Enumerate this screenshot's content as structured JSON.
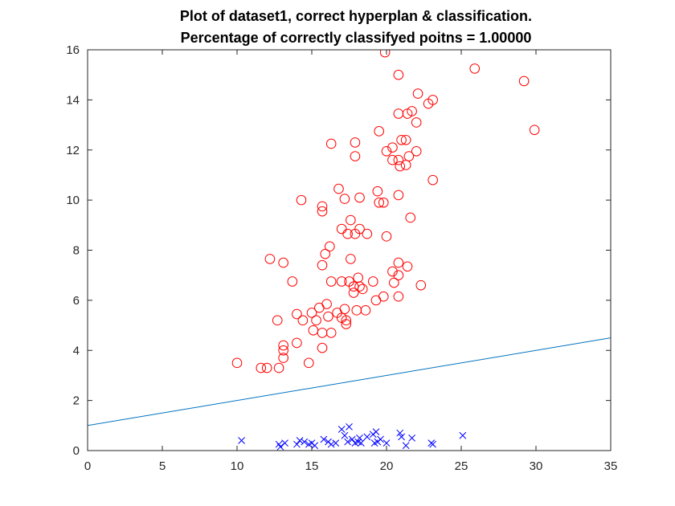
{
  "chart_data": {
    "type": "scatter",
    "title": [
      "Plot of dataset1, correct hyperplan & classification.",
      "Percentage of correctly classifyed poitns = 1.00000"
    ],
    "xlabel": "",
    "ylabel": "",
    "xlim": [
      0,
      35
    ],
    "ylim": [
      0,
      16
    ],
    "xticks": [
      0,
      5,
      10,
      15,
      20,
      25,
      30,
      35
    ],
    "yticks": [
      0,
      2,
      4,
      6,
      8,
      10,
      12,
      14,
      16
    ],
    "grid": false,
    "legend": null,
    "colors": {
      "circles": "#ff0000",
      "crosses": "#0000ff",
      "line": "#0072bd",
      "axes": "#262626"
    },
    "series": [
      {
        "marker": "circle",
        "points": [
          [
            19.9,
            15.9
          ],
          [
            25.9,
            15.25
          ],
          [
            29.2,
            14.75
          ],
          [
            20.8,
            15.0
          ],
          [
            22.1,
            14.25
          ],
          [
            23.1,
            14.0
          ],
          [
            22.8,
            13.85
          ],
          [
            21.7,
            13.55
          ],
          [
            21.4,
            13.45
          ],
          [
            20.8,
            13.45
          ],
          [
            22.0,
            13.1
          ],
          [
            29.9,
            12.8
          ],
          [
            19.5,
            12.75
          ],
          [
            21.0,
            12.4
          ],
          [
            21.3,
            12.4
          ],
          [
            16.3,
            12.25
          ],
          [
            17.9,
            12.3
          ],
          [
            20.4,
            12.1
          ],
          [
            20.0,
            11.95
          ],
          [
            22.0,
            11.95
          ],
          [
            17.9,
            11.75
          ],
          [
            21.5,
            11.75
          ],
          [
            20.4,
            11.6
          ],
          [
            20.8,
            11.6
          ],
          [
            21.3,
            11.4
          ],
          [
            20.9,
            11.35
          ],
          [
            23.1,
            10.8
          ],
          [
            16.8,
            10.45
          ],
          [
            19.4,
            10.35
          ],
          [
            14.3,
            10.0
          ],
          [
            17.2,
            10.05
          ],
          [
            18.2,
            10.1
          ],
          [
            20.8,
            10.2
          ],
          [
            15.7,
            9.75
          ],
          [
            19.5,
            9.9
          ],
          [
            19.8,
            9.9
          ],
          [
            15.7,
            9.55
          ],
          [
            21.6,
            9.3
          ],
          [
            17.6,
            9.2
          ],
          [
            17.0,
            8.85
          ],
          [
            18.2,
            8.85
          ],
          [
            17.4,
            8.65
          ],
          [
            17.9,
            8.65
          ],
          [
            18.7,
            8.65
          ],
          [
            20.0,
            8.55
          ],
          [
            16.2,
            8.15
          ],
          [
            15.9,
            7.85
          ],
          [
            12.2,
            7.65
          ],
          [
            17.6,
            7.65
          ],
          [
            13.1,
            7.5
          ],
          [
            20.8,
            7.5
          ],
          [
            21.4,
            7.35
          ],
          [
            15.7,
            7.4
          ],
          [
            20.4,
            7.15
          ],
          [
            20.8,
            7.0
          ],
          [
            13.7,
            6.75
          ],
          [
            16.3,
            6.75
          ],
          [
            17.0,
            6.75
          ],
          [
            17.5,
            6.75
          ],
          [
            19.1,
            6.75
          ],
          [
            20.5,
            6.7
          ],
          [
            18.1,
            6.9
          ],
          [
            22.3,
            6.6
          ],
          [
            17.8,
            6.55
          ],
          [
            18.2,
            6.55
          ],
          [
            18.4,
            6.45
          ],
          [
            17.8,
            6.3
          ],
          [
            19.8,
            6.15
          ],
          [
            20.8,
            6.15
          ],
          [
            19.3,
            6.0
          ],
          [
            16.0,
            5.85
          ],
          [
            15.5,
            5.7
          ],
          [
            15.0,
            5.5
          ],
          [
            14.0,
            5.45
          ],
          [
            17.2,
            5.65
          ],
          [
            16.7,
            5.5
          ],
          [
            18.0,
            5.6
          ],
          [
            18.6,
            5.6
          ],
          [
            16.1,
            5.35
          ],
          [
            17.0,
            5.3
          ],
          [
            17.3,
            5.2
          ],
          [
            15.3,
            5.2
          ],
          [
            14.4,
            5.2
          ],
          [
            12.7,
            5.2
          ],
          [
            17.3,
            5.05
          ],
          [
            15.1,
            4.8
          ],
          [
            15.7,
            4.7
          ],
          [
            16.3,
            4.7
          ],
          [
            14.0,
            4.3
          ],
          [
            13.1,
            4.2
          ],
          [
            13.1,
            4.0
          ],
          [
            15.7,
            4.1
          ],
          [
            13.1,
            3.7
          ],
          [
            14.8,
            3.5
          ],
          [
            10.0,
            3.5
          ],
          [
            11.6,
            3.3
          ],
          [
            12.0,
            3.3
          ],
          [
            12.8,
            3.3
          ]
        ]
      },
      {
        "marker": "cross",
        "points": [
          [
            10.3,
            0.4
          ],
          [
            12.8,
            0.25
          ],
          [
            12.9,
            0.15
          ],
          [
            13.2,
            0.3
          ],
          [
            14.0,
            0.25
          ],
          [
            14.2,
            0.4
          ],
          [
            14.5,
            0.35
          ],
          [
            14.8,
            0.25
          ],
          [
            15.0,
            0.3
          ],
          [
            15.2,
            0.2
          ],
          [
            15.8,
            0.45
          ],
          [
            16.1,
            0.35
          ],
          [
            16.3,
            0.25
          ],
          [
            16.6,
            0.3
          ],
          [
            17.0,
            0.85
          ],
          [
            17.2,
            0.6
          ],
          [
            17.4,
            0.35
          ],
          [
            17.5,
            0.95
          ],
          [
            17.7,
            0.45
          ],
          [
            17.9,
            0.3
          ],
          [
            18.1,
            0.35
          ],
          [
            18.2,
            0.5
          ],
          [
            18.3,
            0.3
          ],
          [
            18.7,
            0.55
          ],
          [
            19.1,
            0.65
          ],
          [
            19.2,
            0.3
          ],
          [
            19.3,
            0.75
          ],
          [
            19.4,
            0.35
          ],
          [
            19.6,
            0.45
          ],
          [
            20.0,
            0.3
          ],
          [
            20.9,
            0.7
          ],
          [
            21.0,
            0.55
          ],
          [
            21.3,
            0.2
          ],
          [
            21.7,
            0.5
          ],
          [
            23.0,
            0.3
          ],
          [
            23.1,
            0.25
          ],
          [
            25.1,
            0.6
          ]
        ]
      }
    ],
    "lines": [
      {
        "x": [
          0,
          35
        ],
        "y": [
          1.0,
          4.5
        ]
      }
    ]
  }
}
